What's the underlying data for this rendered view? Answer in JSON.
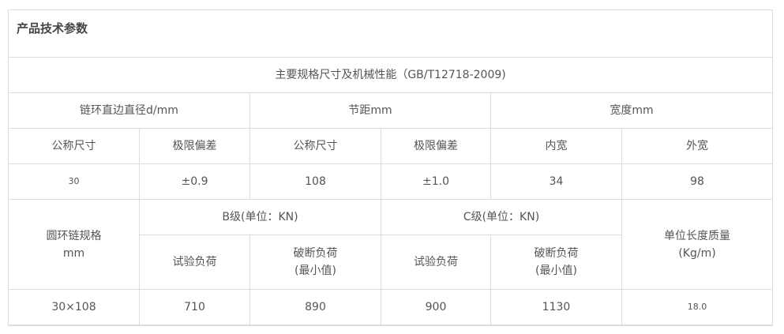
{
  "title": "产品技术参数",
  "table": {
    "caption": "主要规格尺寸及机械性能（GB/T12718-2009)",
    "group1": [
      "链环直边直径d/mm",
      "节距mm",
      "宽度mm"
    ],
    "sub1": [
      "公称尺寸",
      "极限偏差",
      "公称尺寸",
      "极限偏差",
      "内宽",
      "外宽"
    ],
    "row1": [
      "30",
      "±0.9",
      "108",
      "±1.0",
      "34",
      "98"
    ],
    "spec_header": "圆环链规格",
    "spec_unit": "mm",
    "b_grade": "B级(单位：KN)",
    "c_grade": "C级(单位：KN)",
    "mass_header": "单位长度质量",
    "mass_unit": "(Kg/m)",
    "test_load": "试验负荷",
    "break_load": "破断负荷",
    "break_min": "(最小值)",
    "row2": [
      "30×108",
      "710",
      "890",
      "900",
      "1130",
      "18.0"
    ]
  }
}
